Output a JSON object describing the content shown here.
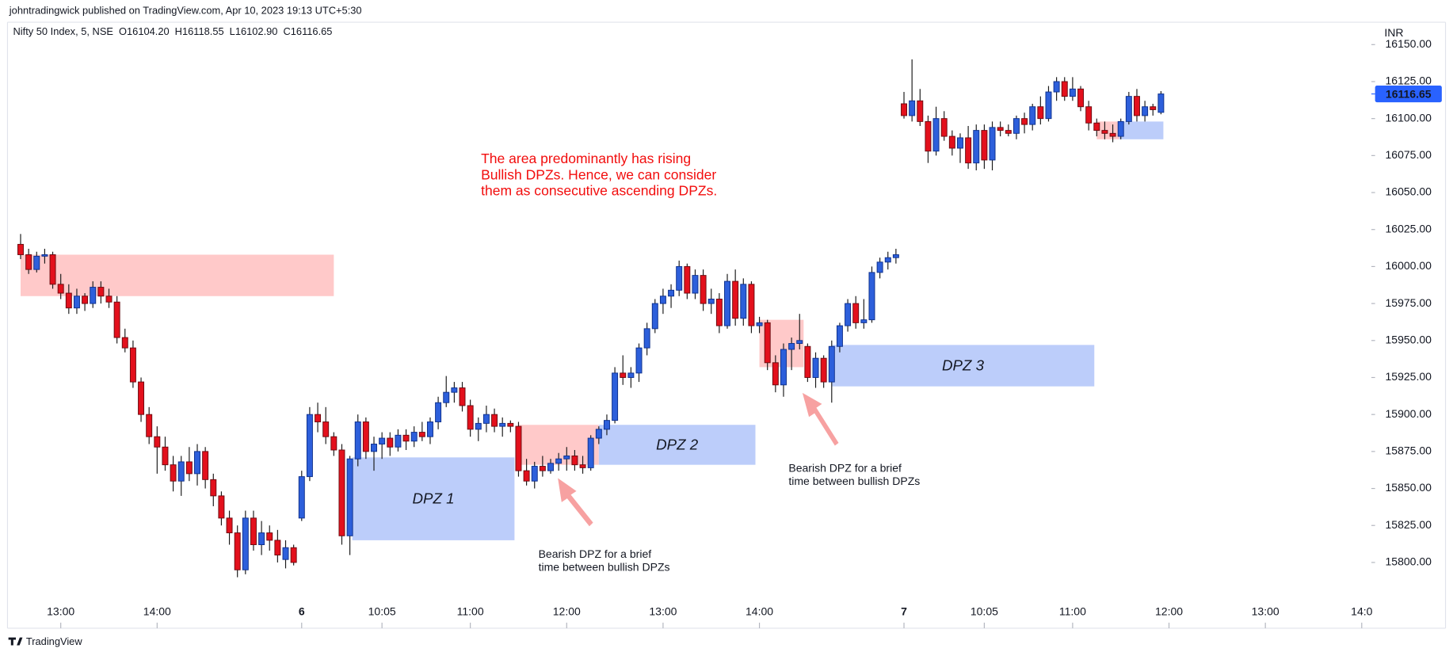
{
  "chart_data": {
    "type": "candlestick",
    "publisher": "johntradingwick published on TradingView.com, Apr 10, 2023 19:13 UTC+5:30",
    "symbol": "Nifty 50 Index, 5, NSE",
    "ohlc": [
      "O16104.20",
      "H16118.55",
      "L16102.90",
      "C16116.65"
    ],
    "currency": "INR",
    "brand": "TradingView",
    "up_color": "#2d5fdb",
    "down_color": "#e3101c",
    "last_price": {
      "value": 16116.65,
      "label": "16116.65"
    },
    "ylim": [
      15775.6,
      16162.6
    ],
    "yticks": [
      {
        "value": 15800,
        "label": "15800.00"
      },
      {
        "value": 15825,
        "label": "15825.00"
      },
      {
        "value": 15850,
        "label": "15850.00"
      },
      {
        "value": 15875,
        "label": "15875.00"
      },
      {
        "value": 15900,
        "label": "15900.00"
      },
      {
        "value": 15925,
        "label": "15925.00"
      },
      {
        "value": 15950,
        "label": "15950.00"
      },
      {
        "value": 15975,
        "label": "15975.00"
      },
      {
        "value": 16000,
        "label": "16000.00"
      },
      {
        "value": 16025,
        "label": "16025.00"
      },
      {
        "value": 16050,
        "label": "16050.00"
      },
      {
        "value": 16075,
        "label": "16075.00"
      },
      {
        "value": 16100,
        "label": "16100.00"
      },
      {
        "value": 16125,
        "label": "16125.00"
      },
      {
        "value": 16150,
        "label": "16150.00"
      }
    ],
    "xlim": [
      -1.4,
      168.2
    ],
    "xticks": [
      {
        "value": 5,
        "label": "13:00"
      },
      {
        "value": 17,
        "label": "14:00"
      },
      {
        "value": 35,
        "label": "6"
      },
      {
        "value": 45,
        "label": "10:05"
      },
      {
        "value": 56,
        "label": "11:00"
      },
      {
        "value": 68,
        "label": "12:00"
      },
      {
        "value": 80,
        "label": "13:00"
      },
      {
        "value": 92,
        "label": "14:00"
      },
      {
        "value": 110,
        "label": "7"
      },
      {
        "value": 120,
        "label": "10:05"
      },
      {
        "value": 131,
        "label": "11:00"
      },
      {
        "value": 143,
        "label": "12:00"
      },
      {
        "value": 155,
        "label": "13:00"
      },
      {
        "value": 167,
        "label": "14:0"
      }
    ],
    "candles": [
      [
        16015,
        16022,
        16005,
        16008
      ],
      [
        16008,
        16012,
        15995,
        15998
      ],
      [
        15998,
        16010,
        15996,
        16007
      ],
      [
        16007,
        16012,
        16002,
        16008
      ],
      [
        16008,
        16010,
        15985,
        15988
      ],
      [
        15988,
        15995,
        15978,
        15982
      ],
      [
        15982,
        15988,
        15968,
        15972
      ],
      [
        15972,
        15985,
        15968,
        15980
      ],
      [
        15980,
        15982,
        15970,
        15975
      ],
      [
        15975,
        15990,
        15972,
        15986
      ],
      [
        15986,
        15990,
        15975,
        15980
      ],
      [
        15980,
        15985,
        15972,
        15976
      ],
      [
        15976,
        15980,
        15948,
        15952
      ],
      [
        15952,
        15958,
        15942,
        15945
      ],
      [
        15945,
        15950,
        15918,
        15922
      ],
      [
        15922,
        15925,
        15895,
        15900
      ],
      [
        15900,
        15905,
        15880,
        15885
      ],
      [
        15885,
        15892,
        15860,
        15878
      ],
      [
        15878,
        15885,
        15862,
        15866
      ],
      [
        15866,
        15872,
        15848,
        15855
      ],
      [
        15855,
        15872,
        15845,
        15868
      ],
      [
        15868,
        15878,
        15855,
        15860
      ],
      [
        15860,
        15880,
        15852,
        15875
      ],
      [
        15875,
        15878,
        15850,
        15856
      ],
      [
        15856,
        15860,
        15838,
        15845
      ],
      [
        15845,
        15848,
        15825,
        15830
      ],
      [
        15830,
        15835,
        15812,
        15820
      ],
      [
        15820,
        15825,
        15790,
        15795
      ],
      [
        15795,
        15835,
        15792,
        15830
      ],
      [
        15830,
        15835,
        15808,
        15812
      ],
      [
        15812,
        15828,
        15805,
        15820
      ],
      [
        15820,
        15825,
        15808,
        15815
      ],
      [
        15815,
        15822,
        15800,
        15805
      ],
      [
        15802,
        15815,
        15796,
        15810
      ],
      [
        15810,
        15812,
        15798,
        15800
      ],
      [
        15830,
        15862,
        15828,
        15858
      ],
      [
        15858,
        15905,
        15855,
        15900
      ],
      [
        15900,
        15908,
        15888,
        15895
      ],
      [
        15895,
        15905,
        15880,
        15885
      ],
      [
        15885,
        15888,
        15872,
        15876
      ],
      [
        15876,
        15880,
        15812,
        15818
      ],
      [
        15818,
        15872,
        15805,
        15870
      ],
      [
        15870,
        15900,
        15865,
        15895
      ],
      [
        15895,
        15898,
        15870,
        15875
      ],
      [
        15875,
        15885,
        15862,
        15880
      ],
      [
        15880,
        15888,
        15870,
        15884
      ],
      [
        15884,
        15888,
        15872,
        15878
      ],
      [
        15878,
        15890,
        15875,
        15886
      ],
      [
        15886,
        15890,
        15876,
        15882
      ],
      [
        15882,
        15892,
        15878,
        15888
      ],
      [
        15888,
        15895,
        15882,
        15885
      ],
      [
        15885,
        15898,
        15880,
        15895
      ],
      [
        15895,
        15912,
        15890,
        15908
      ],
      [
        15908,
        15926,
        15905,
        15915
      ],
      [
        15915,
        15922,
        15908,
        15918
      ],
      [
        15918,
        15922,
        15902,
        15906
      ],
      [
        15906,
        15910,
        15885,
        15890
      ],
      [
        15890,
        15898,
        15882,
        15894
      ],
      [
        15894,
        15906,
        15888,
        15900
      ],
      [
        15900,
        15904,
        15888,
        15892
      ],
      [
        15892,
        15898,
        15885,
        15894
      ],
      [
        15894,
        15896,
        15888,
        15892
      ],
      [
        15892,
        15895,
        15858,
        15862
      ],
      [
        15862,
        15870,
        15852,
        15855
      ],
      [
        15855,
        15868,
        15850,
        15865
      ],
      [
        15865,
        15872,
        15858,
        15862
      ],
      [
        15862,
        15870,
        15860,
        15867
      ],
      [
        15867,
        15874,
        15862,
        15870
      ],
      [
        15870,
        15878,
        15862,
        15872
      ],
      [
        15872,
        15876,
        15862,
        15866
      ],
      [
        15866,
        15872,
        15860,
        15864
      ],
      [
        15864,
        15886,
        15862,
        15884
      ],
      [
        15884,
        15892,
        15880,
        15890
      ],
      [
        15890,
        15900,
        15886,
        15896
      ],
      [
        15896,
        15932,
        15894,
        15928
      ],
      [
        15928,
        15940,
        15920,
        15925
      ],
      [
        15925,
        15932,
        15918,
        15928
      ],
      [
        15928,
        15948,
        15922,
        15945
      ],
      [
        15945,
        15962,
        15940,
        15958
      ],
      [
        15958,
        15978,
        15955,
        15975
      ],
      [
        15975,
        15985,
        15968,
        15980
      ],
      [
        15980,
        15988,
        15972,
        15984
      ],
      [
        15984,
        16004,
        15980,
        16000
      ],
      [
        16000,
        16002,
        15978,
        15982
      ],
      [
        15982,
        15998,
        15978,
        15994
      ],
      [
        15994,
        15998,
        15970,
        15975
      ],
      [
        15975,
        15985,
        15968,
        15978
      ],
      [
        15978,
        15982,
        15955,
        15960
      ],
      [
        15960,
        15995,
        15958,
        15990
      ],
      [
        15990,
        15998,
        15960,
        15965
      ],
      [
        15965,
        15992,
        15960,
        15988
      ],
      [
        15988,
        15990,
        15955,
        15960
      ],
      [
        15960,
        15966,
        15955,
        15962
      ],
      [
        15962,
        15964,
        15930,
        15935
      ],
      [
        15935,
        15940,
        15915,
        15920
      ],
      [
        15920,
        15948,
        15912,
        15944
      ],
      [
        15944,
        15952,
        15930,
        15948
      ],
      [
        15948,
        15968,
        15944,
        15950
      ],
      [
        15946,
        15948,
        15922,
        15925
      ],
      [
        15925,
        15942,
        15918,
        15938
      ],
      [
        15938,
        15940,
        15918,
        15922
      ],
      [
        15922,
        15950,
        15908,
        15946
      ],
      [
        15946,
        15962,
        15942,
        15960
      ],
      [
        15960,
        15978,
        15956,
        15975
      ],
      [
        15975,
        15980,
        15958,
        15962
      ],
      [
        15962,
        15978,
        15958,
        15964
      ],
      [
        15964,
        16000,
        15962,
        15996
      ],
      [
        15996,
        16006,
        15992,
        16003
      ],
      [
        16003,
        16010,
        15998,
        16006
      ],
      [
        16006,
        16012,
        16002,
        16008
      ],
      [
        16110,
        16118,
        16100,
        16102
      ],
      [
        16102,
        16140,
        16098,
        16112
      ],
      [
        16112,
        16120,
        16095,
        16098
      ],
      [
        16098,
        16102,
        16070,
        16078
      ],
      [
        16078,
        16108,
        16075,
        16100
      ],
      [
        16100,
        16105,
        16085,
        16088
      ],
      [
        16088,
        16092,
        16075,
        16080
      ],
      [
        16080,
        16090,
        16070,
        16087
      ],
      [
        16087,
        16095,
        16066,
        16070
      ],
      [
        16070,
        16096,
        16065,
        16092
      ],
      [
        16092,
        16096,
        16066,
        16072
      ],
      [
        16072,
        16098,
        16065,
        16094
      ],
      [
        16094,
        16098,
        16088,
        16092
      ],
      [
        16092,
        16096,
        16088,
        16090
      ],
      [
        16090,
        16102,
        16086,
        16100
      ],
      [
        16100,
        16104,
        16090,
        16096
      ],
      [
        16096,
        16110,
        16092,
        16108
      ],
      [
        16108,
        16115,
        16096,
        16100
      ],
      [
        16100,
        16122,
        16098,
        16118
      ],
      [
        16118,
        16128,
        16112,
        16125
      ],
      [
        16125,
        16128,
        16112,
        16115
      ],
      [
        16115,
        16128,
        16112,
        16120
      ],
      [
        16120,
        16122,
        16105,
        16108
      ],
      [
        16108,
        16112,
        16092,
        16097
      ],
      [
        16097,
        16100,
        16088,
        16092
      ],
      [
        16092,
        16098,
        16086,
        16090
      ],
      [
        16090,
        16096,
        16084,
        16088
      ],
      [
        16088,
        16100,
        16086,
        16098
      ],
      [
        16098,
        16118,
        16096,
        16115
      ],
      [
        16115,
        16120,
        16098,
        16102
      ],
      [
        16102,
        16112,
        16098,
        16108
      ],
      [
        16108,
        16110,
        16102,
        16106
      ],
      [
        16104.2,
        16118.55,
        16102.9,
        16116.65
      ]
    ],
    "zones": [
      {
        "color": "#ffc9c9",
        "x0": 0,
        "x1": 39,
        "y0": 15980,
        "y1": 16008
      },
      {
        "color": "#bccdfa",
        "x0": 41.3,
        "x1": 61.5,
        "y0": 15815,
        "y1": 15871,
        "label": "DPZ 1"
      },
      {
        "color": "#ffc9c9",
        "x0": 62,
        "x1": 72,
        "y0": 15866,
        "y1": 15893
      },
      {
        "color": "#bccdfa",
        "x0": 72,
        "x1": 91.5,
        "y0": 15866,
        "y1": 15893,
        "label": "DPZ 2"
      },
      {
        "color": "#ffc9c9",
        "x0": 92,
        "x1": 97.5,
        "y0": 15932,
        "y1": 15964
      },
      {
        "color": "#bccdfa",
        "x0": 101,
        "x1": 133.7,
        "y0": 15919,
        "y1": 15947,
        "label": "DPZ 3"
      },
      {
        "color": "#ffc9c9",
        "x0": 134,
        "x1": 136.8,
        "y0": 16086,
        "y1": 16098
      },
      {
        "color": "#bccdfa",
        "x0": 136.8,
        "x1": 142.3,
        "y0": 16086,
        "y1": 16098
      }
    ],
    "annotations": [
      {
        "lines": [
          "The area predominantly has rising",
          "Bullish DPZs. Hence, we can consider",
          "them as consecutive ascending DPZs."
        ]
      },
      {
        "lines": [
          "Bearish DPZ for a brief",
          "time between bullish DPZs"
        ]
      },
      {
        "lines": [
          "Bearish DPZ for a brief",
          "time between bullish DPZs"
        ]
      }
    ]
  }
}
